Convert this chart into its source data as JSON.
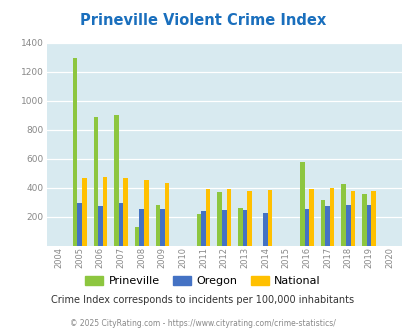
{
  "title": "Prineville Violent Crime Index",
  "years": [
    2004,
    2005,
    2006,
    2007,
    2008,
    2009,
    2010,
    2011,
    2012,
    2013,
    2014,
    2015,
    2016,
    2017,
    2018,
    2019,
    2020
  ],
  "prineville": [
    0,
    1295,
    890,
    905,
    130,
    285,
    0,
    220,
    370,
    260,
    0,
    0,
    575,
    315,
    425,
    360,
    0
  ],
  "oregon": [
    0,
    295,
    275,
    295,
    255,
    255,
    0,
    240,
    245,
    245,
    230,
    0,
    255,
    275,
    285,
    285,
    0
  ],
  "national": [
    0,
    470,
    475,
    470,
    455,
    435,
    0,
    390,
    390,
    375,
    385,
    0,
    395,
    400,
    380,
    380,
    0
  ],
  "prineville_color": "#8dc63f",
  "oregon_color": "#4472c4",
  "national_color": "#ffc000",
  "fig_bg": "#ffffff",
  "plot_bg": "#d8eaf0",
  "grid_color": "#ffffff",
  "title_color": "#1a6fbd",
  "tick_color": "#888888",
  "ylim": [
    0,
    1400
  ],
  "yticks": [
    0,
    200,
    400,
    600,
    800,
    1000,
    1200,
    1400
  ],
  "subtitle": "Crime Index corresponds to incidents per 100,000 inhabitants",
  "footer": "© 2025 CityRating.com - https://www.cityrating.com/crime-statistics/",
  "legend_labels": [
    "Prineville",
    "Oregon",
    "National"
  ],
  "subtitle_color": "#333333",
  "footer_color": "#888888",
  "url_color": "#4472c4"
}
